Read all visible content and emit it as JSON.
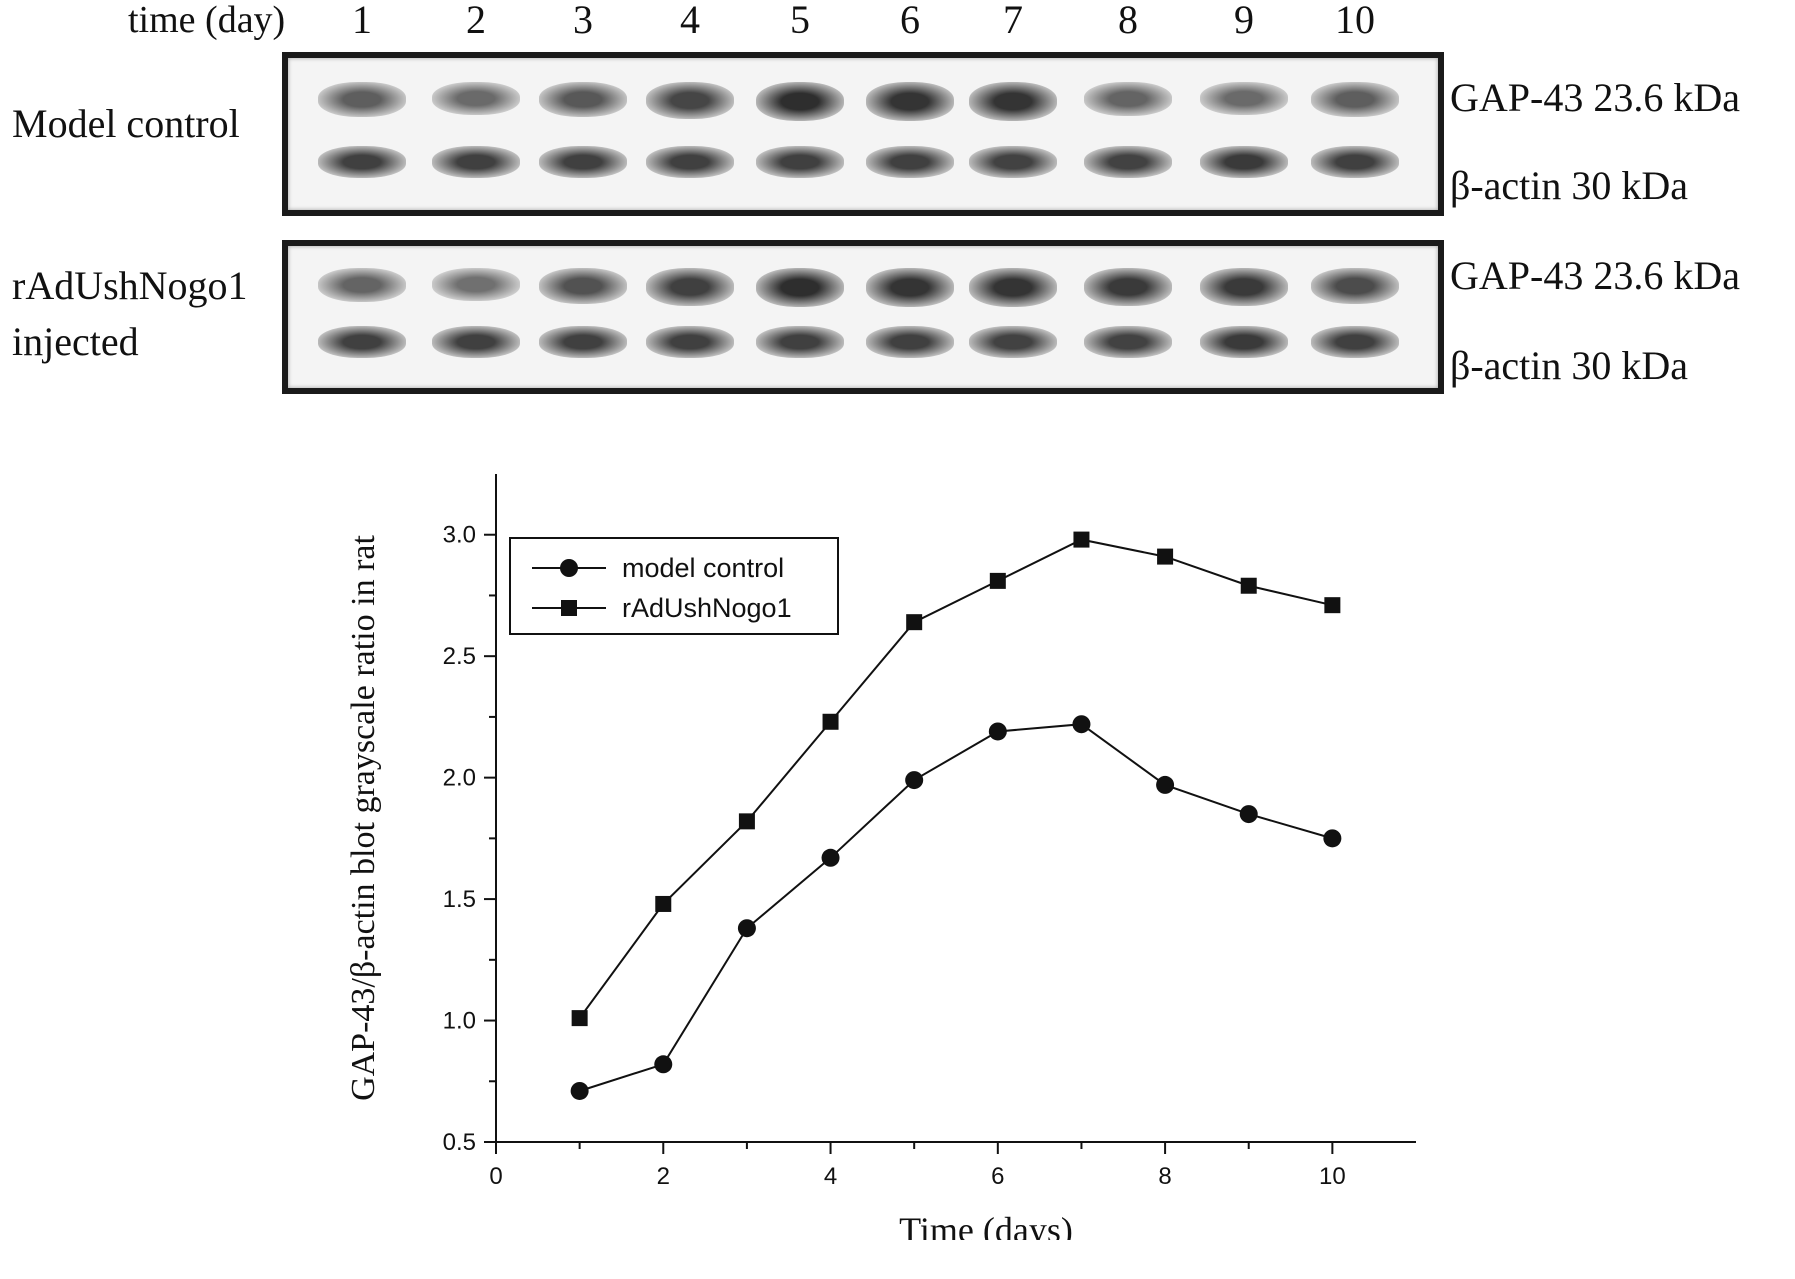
{
  "blot": {
    "header_label": "time (day)",
    "lanes": [
      "1",
      "2",
      "3",
      "4",
      "5",
      "6",
      "7",
      "8",
      "9",
      "10"
    ],
    "panels": [
      {
        "row_label_lines": [
          "Model control"
        ],
        "band_labels": [
          "GAP-43   23.6 kDa",
          "β-actin 30 kDa"
        ],
        "gap43_intensity": [
          0.55,
          0.45,
          0.6,
          0.75,
          0.95,
          0.9,
          0.9,
          0.5,
          0.45,
          0.55
        ],
        "actin_intensity": [
          0.8,
          0.8,
          0.8,
          0.8,
          0.8,
          0.8,
          0.78,
          0.78,
          0.85,
          0.8
        ]
      },
      {
        "row_label_lines": [
          "rAdUshNogo1",
          "injected"
        ],
        "band_labels": [
          "GAP-43   23.6 kDa",
          "β-actin 30 kDa"
        ],
        "gap43_intensity": [
          0.5,
          0.4,
          0.65,
          0.8,
          0.95,
          0.9,
          0.9,
          0.85,
          0.85,
          0.7
        ],
        "actin_intensity": [
          0.8,
          0.8,
          0.8,
          0.8,
          0.8,
          0.8,
          0.78,
          0.78,
          0.85,
          0.8
        ]
      }
    ]
  },
  "chart_data": {
    "type": "line",
    "xlabel": "Time (days)",
    "ylabel": "GAP-43/β-actin blot grayscale ratio in rat",
    "xlim": [
      0,
      11
    ],
    "ylim": [
      0.5,
      3.25
    ],
    "xticks": [
      0,
      2,
      4,
      6,
      8,
      10
    ],
    "yticks": [
      0.5,
      1.0,
      1.5,
      2.0,
      2.5,
      3.0
    ],
    "ytick_labels": [
      "0.5",
      "1.0",
      "1.5",
      "2.0",
      "2.5",
      "3.0"
    ],
    "x": [
      1,
      2,
      3,
      4,
      5,
      6,
      7,
      8,
      9,
      10
    ],
    "series": [
      {
        "name": "model control",
        "marker": "circle",
        "values": [
          0.71,
          0.82,
          1.38,
          1.67,
          1.99,
          2.19,
          2.22,
          1.97,
          1.85,
          1.75
        ]
      },
      {
        "name": "rAdUshNogo1",
        "marker": "square",
        "values": [
          1.01,
          1.48,
          1.82,
          2.23,
          2.64,
          2.81,
          2.98,
          2.91,
          2.79,
          2.71
        ]
      }
    ],
    "legend_position": "top-left",
    "grid": false,
    "color": "#111111"
  }
}
